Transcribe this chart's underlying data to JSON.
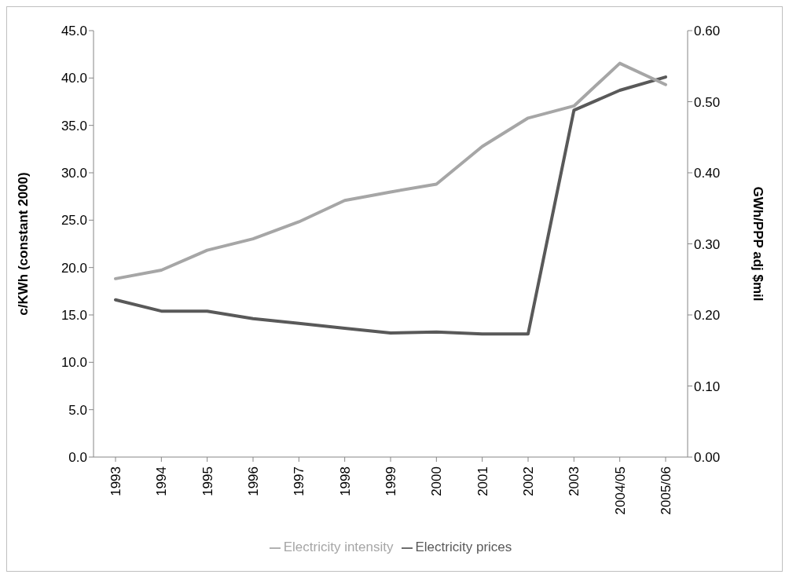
{
  "chart_data": {
    "type": "line",
    "ylabel": "c/KWh (constant 2000)",
    "y2label": "GWh/PPP adj $mil",
    "categories": [
      "1993",
      "1994",
      "1995",
      "1996",
      "1997",
      "1998",
      "1999",
      "2000",
      "2001",
      "2002",
      "2003",
      "2004/05",
      "2005/06"
    ],
    "series": [
      {
        "name": "Electricity prices",
        "color": "#595959",
        "values": [
          16.6,
          15.4,
          15.4,
          14.6,
          14.1,
          13.6,
          13.1,
          13.2,
          13.0,
          13.0,
          36.6,
          38.7,
          40.1
        ]
      },
      {
        "name": "Electricity intensity",
        "color": "#a6a6a6",
        "axis": "y2",
        "values": [
          0.251,
          0.263,
          0.291,
          0.307,
          0.331,
          0.361,
          0.373,
          0.384,
          0.437,
          0.477,
          0.494,
          0.554,
          0.524
        ]
      }
    ],
    "ylim": [
      0,
      45
    ],
    "yticks": [
      {
        "value": 0,
        "label": "0.0"
      },
      {
        "value": 5,
        "label": "5.0"
      },
      {
        "value": 10,
        "label": "10.0"
      },
      {
        "value": 15,
        "label": "15.0"
      },
      {
        "value": 20,
        "label": "20.0"
      },
      {
        "value": 25,
        "label": "25.0"
      },
      {
        "value": 30,
        "label": "30.0"
      },
      {
        "value": 35,
        "label": "35.0"
      },
      {
        "value": 40,
        "label": "40.0"
      },
      {
        "value": 45,
        "label": "45.0"
      }
    ],
    "y2lim": [
      0,
      0.6
    ],
    "y2ticks": [
      {
        "value": 0,
        "label": "0.00"
      },
      {
        "value": 0.1,
        "label": "0.10"
      },
      {
        "value": 0.2,
        "label": "0.20"
      },
      {
        "value": 0.3,
        "label": "0.30"
      },
      {
        "value": 0.4,
        "label": "0.40"
      },
      {
        "value": 0.5,
        "label": "0.50"
      },
      {
        "value": 0.6,
        "label": "0.60"
      }
    ],
    "grid": false,
    "legend": "bottom",
    "marker": "none",
    "line_style": "solid"
  }
}
